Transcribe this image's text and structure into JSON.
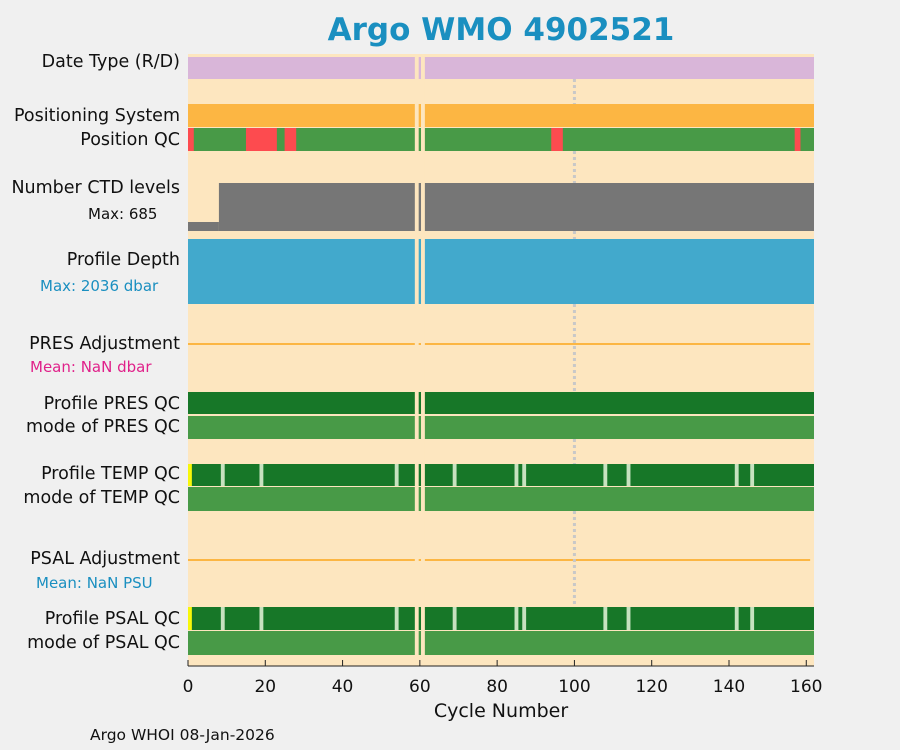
{
  "title": "Argo WMO 4902521",
  "footer": "Argo WHOI 08-Jan-2026",
  "colors": {
    "background": "#fde6bf",
    "date_type": "#d9b6d9",
    "positioning": "#fcb643",
    "qc_good": "#489a47",
    "qc_dark": "#177728",
    "qc_bad": "#fd4b4f",
    "qc_yellow": "#f7f70a",
    "ctd": "#767676",
    "depth": "#42a9cc",
    "adjustment_line": "#fcb643",
    "gap_light": "#c7e2c0",
    "mean_pres_color": "#e0218a",
    "mean_psal_color": "#1a8fc0",
    "depth_max_color": "#1a8fc0",
    "title_color": "#1a8fc0"
  },
  "labels": {
    "date_type": "Date Type (R/D)",
    "positioning_system": "Positioning System",
    "position_qc": "Position QC",
    "number_ctd": "Number CTD levels",
    "ctd_max": "Max: 685",
    "profile_depth": "Profile Depth",
    "depth_max": "Max: 2036 dbar",
    "pres_adjustment": "PRES Adjustment",
    "pres_mean": "Mean:  NaN dbar",
    "profile_pres_qc": "Profile PRES QC",
    "mode_pres_qc": "mode of PRES QC",
    "profile_temp_qc": "Profile TEMP QC",
    "mode_temp_qc": "mode of TEMP QC",
    "psal_adjustment": "PSAL Adjustment",
    "psal_mean": "Mean:  NaN PSU",
    "profile_psal_qc": "Profile PSAL QC",
    "mode_psal_qc": "mode of PSAL QC"
  },
  "chart_data": {
    "type": "timeline",
    "xlabel": "Cycle Number",
    "xlim": [
      0,
      162
    ],
    "xticks": [
      0,
      20,
      40,
      60,
      80,
      100,
      120,
      140,
      160
    ],
    "missing_cycles": [
      60
    ],
    "reference_cycle": 100,
    "position_qc_bad_ranges": [
      [
        0,
        1.5
      ],
      [
        15,
        23
      ],
      [
        25,
        28
      ],
      [
        94,
        97
      ],
      [
        157,
        158.5
      ]
    ],
    "ctd_max": 685,
    "ctd_low_cycles": [
      0,
      8
    ],
    "depth_max_dbar": 2036,
    "temp_qc_gap_cycles": [
      9,
      19,
      54,
      69,
      85,
      87,
      108,
      114,
      142,
      146
    ],
    "temp_qc_flag_cycles": [
      0
    ],
    "psal_qc_gap_cycles": [
      9,
      19,
      54,
      69,
      85,
      87,
      108,
      114,
      142,
      146
    ],
    "psal_qc_flag_cycles": [
      0
    ]
  }
}
